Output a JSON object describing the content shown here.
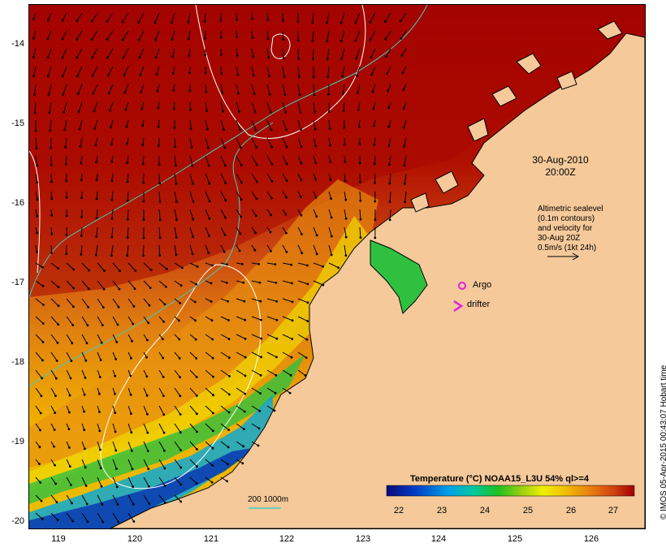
{
  "date_line": "30-Aug-2010",
  "time_line": "20:00Z",
  "velocity_note": {
    "lines": [
      "Altimetric sealevel",
      "(0.1m contours)",
      "and velocity for",
      "30-Aug 20Z",
      "0.5m/s (1kt 24h)"
    ]
  },
  "legend": {
    "argo": "Argo",
    "drifter": "drifter",
    "isobaths": "200  1000m"
  },
  "colorbar": {
    "title": "Temperature (°C) NOAA15_L3U 54% ql>=4",
    "ticks": [
      "22",
      "23",
      "24",
      "25",
      "26",
      "27"
    ],
    "colors": [
      "#0a0a7a",
      "#0040c8",
      "#00a0e8",
      "#00c8a0",
      "#20c020",
      "#a0d010",
      "#f0f000",
      "#f0c000",
      "#e88010",
      "#d04010",
      "#a00000"
    ]
  },
  "axes": {
    "lat_labels": [
      "-14",
      "-15",
      "-16",
      "-17",
      "-18",
      "-19",
      "-20"
    ],
    "lon_labels": [
      "119",
      "120",
      "121",
      "122",
      "123",
      "124",
      "125",
      "126"
    ]
  },
  "credit": "© IMOS 05-Apr-2015 00:43:07 Hobart time",
  "colors": {
    "land": "#f5c99a",
    "coast": "#000000",
    "isobath": "#40d0c0",
    "sealevel_contour": "#ffffff",
    "marker": "#e020e0"
  }
}
